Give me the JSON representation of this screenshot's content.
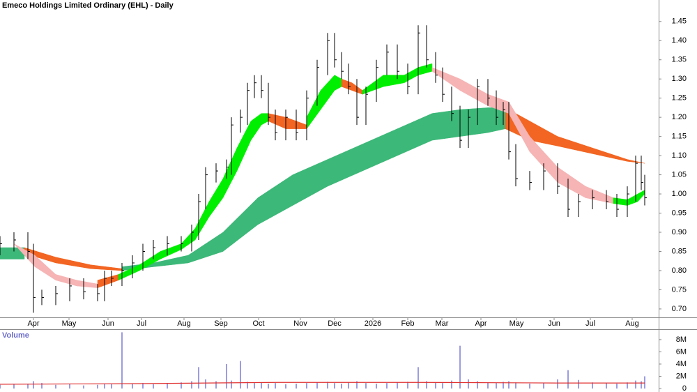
{
  "chart_data": [
    {
      "type": "ohlc",
      "title": "Emeco Holdings Limited Ordinary (EHL) - Daily",
      "color": "#000000",
      "x": [
        0,
        8,
        16,
        19.2,
        24,
        32,
        40,
        48,
        56,
        60,
        64,
        70,
        76,
        82,
        88,
        96,
        104,
        110,
        114,
        118,
        124,
        130,
        132.8,
        138,
        142,
        146,
        150,
        154,
        158,
        164,
        170,
        176,
        182,
        188,
        192,
        196,
        200,
        204.8,
        210,
        216,
        222,
        228,
        234,
        240,
        244.8,
        250,
        254,
        259.2,
        264,
        268.8,
        274,
        280,
        284.8,
        288.8,
        292,
        296,
        304,
        312,
        320,
        326,
        332,
        340,
        348,
        354,
        360,
        364.8,
        368,
        370
      ],
      "high": [
        0.89,
        0.9,
        0.9,
        0.87,
        0.75,
        0.76,
        0.78,
        0.78,
        0.765,
        0.8,
        0.8,
        0.82,
        0.84,
        0.87,
        0.88,
        0.89,
        0.89,
        0.92,
        1.0,
        1.07,
        1.08,
        1.09,
        1.2,
        1.22,
        1.29,
        1.31,
        1.31,
        1.29,
        1.22,
        1.22,
        1.22,
        1.27,
        1.35,
        1.42,
        1.42,
        1.37,
        1.34,
        1.3,
        1.28,
        1.35,
        1.39,
        1.39,
        1.34,
        1.44,
        1.44,
        1.37,
        1.33,
        1.28,
        1.23,
        1.22,
        1.3,
        1.3,
        1.27,
        1.24,
        1.24,
        1.13,
        1.06,
        1.08,
        1.08,
        1.04,
        1.0,
        1.01,
        1.01,
        1.0,
        1.02,
        1.1,
        1.1,
        1.05
      ],
      "low": [
        0.84,
        0.85,
        0.83,
        0.69,
        0.71,
        0.71,
        0.72,
        0.725,
        0.72,
        0.72,
        0.76,
        0.76,
        0.78,
        0.8,
        0.83,
        0.84,
        0.85,
        0.85,
        0.88,
        0.96,
        1.03,
        1.04,
        1.05,
        1.16,
        1.18,
        1.25,
        1.25,
        1.18,
        1.14,
        1.14,
        1.14,
        1.14,
        1.23,
        1.31,
        1.33,
        1.3,
        1.26,
        1.18,
        1.18,
        1.24,
        1.31,
        1.3,
        1.26,
        1.26,
        1.33,
        1.29,
        1.24,
        1.19,
        1.12,
        1.12,
        1.18,
        1.23,
        1.18,
        1.18,
        1.09,
        1.02,
        1.01,
        1.01,
        1.0,
        0.94,
        0.94,
        0.96,
        0.96,
        0.94,
        0.94,
        0.98,
        1.01,
        0.97
      ],
      "close": [
        0.87,
        0.88,
        0.85,
        0.73,
        0.73,
        0.74,
        0.76,
        0.745,
        0.74,
        0.78,
        0.78,
        0.8,
        0.82,
        0.85,
        0.86,
        0.87,
        0.87,
        0.9,
        0.98,
        1.05,
        1.06,
        1.07,
        1.18,
        1.2,
        1.27,
        1.29,
        1.27,
        1.2,
        1.16,
        1.2,
        1.16,
        1.25,
        1.33,
        1.4,
        1.35,
        1.32,
        1.28,
        1.2,
        1.26,
        1.33,
        1.37,
        1.32,
        1.28,
        1.42,
        1.35,
        1.31,
        1.26,
        1.21,
        1.14,
        1.2,
        1.28,
        1.25,
        1.2,
        1.22,
        1.11,
        1.04,
        1.03,
        1.06,
        1.02,
        0.96,
        0.98,
        0.99,
        0.98,
        0.96,
        1.0,
        1.08,
        1.03,
        0.99
      ],
      "bands": [
        {
          "color": "#3cb878",
          "x": [
            0,
            14
          ],
          "upper": [
            0.86,
            0.86
          ],
          "lower": [
            0.83,
            0.83
          ]
        },
        {
          "color": "#f26522",
          "x": [
            14,
            32,
            52,
            70
          ],
          "upper": [
            0.86,
            0.835,
            0.815,
            0.805
          ],
          "lower": [
            0.845,
            0.82,
            0.805,
            0.8
          ]
        },
        {
          "color": "#3cb878",
          "x": [
            70,
            88,
            108,
            128,
            148,
            168,
            188,
            208,
            228,
            248,
            264,
            280,
            290
          ],
          "upper": [
            0.81,
            0.82,
            0.84,
            0.9,
            0.99,
            1.05,
            1.09,
            1.13,
            1.17,
            1.21,
            1.22,
            1.225,
            1.225
          ],
          "lower": [
            0.8,
            0.81,
            0.82,
            0.85,
            0.92,
            0.97,
            1.02,
            1.06,
            1.1,
            1.14,
            1.15,
            1.16,
            1.17
          ]
        },
        {
          "color": "#f26522",
          "x": [
            290,
            304,
            320,
            340,
            360,
            370
          ],
          "upper": [
            1.225,
            1.19,
            1.15,
            1.12,
            1.09,
            1.08
          ],
          "lower": [
            1.17,
            1.14,
            1.125,
            1.105,
            1.085,
            1.08
          ]
        },
        {
          "color": "#f6b4b4",
          "x": [
            8,
            20,
            32,
            44,
            56
          ],
          "upper": [
            0.87,
            0.84,
            0.79,
            0.775,
            0.765
          ],
          "lower": [
            0.87,
            0.81,
            0.775,
            0.76,
            0.755
          ]
        },
        {
          "color": "#f26522",
          "x": [
            56,
            68
          ],
          "upper": [
            0.775,
            0.79
          ],
          "lower": [
            0.755,
            0.775
          ]
        },
        {
          "color": "#00ee00",
          "x": [
            68,
            80,
            92,
            104,
            112,
            120,
            128,
            136,
            144,
            150,
            154
          ],
          "upper": [
            0.79,
            0.815,
            0.85,
            0.87,
            0.91,
            0.98,
            1.04,
            1.12,
            1.19,
            1.21,
            1.21
          ],
          "lower": [
            0.775,
            0.8,
            0.83,
            0.855,
            0.88,
            0.94,
            0.99,
            1.06,
            1.14,
            1.18,
            1.19
          ]
        },
        {
          "color": "#f26522",
          "x": [
            154,
            164,
            176
          ],
          "upper": [
            1.21,
            1.2,
            1.18
          ],
          "lower": [
            1.19,
            1.17,
            1.17
          ]
        },
        {
          "color": "#00ee00",
          "x": [
            176,
            184,
            192,
            196
          ],
          "upper": [
            1.2,
            1.27,
            1.31,
            1.3
          ],
          "lower": [
            1.17,
            1.22,
            1.27,
            1.28
          ]
        },
        {
          "color": "#f26522",
          "x": [
            196,
            202,
            208
          ],
          "upper": [
            1.3,
            1.29,
            1.27
          ],
          "lower": [
            1.28,
            1.27,
            1.26
          ]
        },
        {
          "color": "#00ee00",
          "x": [
            208,
            220,
            232,
            240,
            248
          ],
          "upper": [
            1.27,
            1.31,
            1.31,
            1.33,
            1.34
          ],
          "lower": [
            1.26,
            1.28,
            1.29,
            1.31,
            1.32
          ]
        },
        {
          "color": "#f6b4b4",
          "x": [
            248,
            264,
            280,
            292,
            304,
            320,
            336,
            352
          ],
          "upper": [
            1.33,
            1.3,
            1.26,
            1.24,
            1.15,
            1.07,
            1.02,
            0.99
          ],
          "lower": [
            1.32,
            1.27,
            1.23,
            1.21,
            1.11,
            1.03,
            0.99,
            0.975
          ]
        },
        {
          "color": "#00ee00",
          "x": [
            352,
            360,
            366,
            370
          ],
          "upper": [
            0.99,
            0.985,
            1.0,
            1.01
          ],
          "lower": [
            0.975,
            0.97,
            0.98,
            1.0
          ]
        }
      ],
      "xlim": [
        0,
        378
      ],
      "ylim": [
        0.678,
        1.506
      ],
      "xticks": [
        {
          "value": 19.2,
          "label": "Apr"
        },
        {
          "value": 39.6,
          "label": "May"
        },
        {
          "value": 62,
          "label": "Jun"
        },
        {
          "value": 81.2,
          "label": "Jul"
        },
        {
          "value": 105.6,
          "label": "Aug"
        },
        {
          "value": 126.8,
          "label": "Sep"
        },
        {
          "value": 148.4,
          "label": "Oct"
        },
        {
          "value": 172.4,
          "label": "Nov"
        },
        {
          "value": 192,
          "label": "Dec"
        },
        {
          "value": 214,
          "label": "2026"
        },
        {
          "value": 234,
          "label": "Feb"
        },
        {
          "value": 253.6,
          "label": "Mar"
        },
        {
          "value": 276,
          "label": "Apr"
        },
        {
          "value": 296.4,
          "label": "May"
        },
        {
          "value": 318,
          "label": "Jun"
        },
        {
          "value": 338.8,
          "label": "Jul"
        },
        {
          "value": 362.8,
          "label": "Aug"
        }
      ],
      "yticks": [
        {
          "value": 0.7,
          "label": "0.70"
        },
        0.75,
        {
          "value": 0.8,
          "label": "0.80"
        },
        0.85,
        {
          "value": 0.9,
          "label": "0.90"
        },
        0.95,
        {
          "value": 1.0,
          "label": "1.00"
        },
        1.05,
        {
          "value": 1.1,
          "label": "1.10"
        },
        1.15,
        {
          "value": 1.2,
          "label": "1.20"
        },
        1.25,
        {
          "value": 1.3,
          "label": "1.30"
        },
        1.35,
        {
          "value": 1.4,
          "label": "1.40"
        },
        1.45
      ]
    },
    {
      "type": "bar",
      "title": "Volume",
      "color": "#7b7bd6",
      "x": [
        0,
        8,
        16,
        19.2,
        24,
        32,
        40,
        48,
        56,
        60,
        64,
        70,
        76,
        82,
        88,
        96,
        104,
        110,
        114,
        118,
        124,
        130,
        132.8,
        138,
        142,
        146,
        150,
        154,
        158,
        164,
        170,
        176,
        182,
        188,
        192,
        196,
        200,
        204.8,
        210,
        216,
        222,
        228,
        234,
        240,
        244.8,
        250,
        254,
        259.2,
        264,
        268.8,
        274,
        280,
        284.8,
        288.8,
        292,
        296,
        304,
        312,
        320,
        326,
        332,
        340,
        348,
        354,
        360,
        364.8,
        368,
        370
      ],
      "values": [
        0.6,
        0.7,
        0.8,
        1.2,
        0.9,
        0.6,
        0.7,
        0.5,
        0.6,
        0.8,
        0.7,
        9.2,
        0.8,
        0.9,
        0.7,
        0.8,
        1.0,
        1.2,
        3.5,
        1.5,
        1.2,
        4.0,
        1.3,
        4.5,
        1.1,
        0.9,
        1.0,
        0.8,
        0.9,
        0.7,
        0.8,
        0.9,
        1.0,
        1.1,
        0.9,
        0.8,
        1.0,
        1.2,
        0.9,
        0.8,
        0.9,
        1.0,
        1.1,
        3.5,
        1.2,
        1.0,
        0.9,
        1.3,
        7.0,
        1.5,
        1.2,
        1.0,
        0.9,
        1.1,
        1.2,
        1.0,
        0.8,
        0.9,
        1.5,
        3.0,
        1.4,
        1.0,
        0.9,
        0.8,
        1.0,
        1.3,
        1.2,
        2.0
      ],
      "average": {
        "color": "#e03030",
        "x": [
          0,
          80,
          160,
          240,
          320,
          370
        ],
        "values": [
          0.7,
          0.8,
          1.0,
          1.0,
          0.9,
          0.9
        ]
      },
      "xlim": [
        0,
        378
      ],
      "ylim": [
        0,
        9.7
      ],
      "yticks": [
        0,
        {
          "value": 2,
          "label": "2M"
        },
        {
          "value": 4,
          "label": "4M"
        },
        {
          "value": 6,
          "label": "6M"
        },
        {
          "value": 8,
          "label": "8M"
        }
      ]
    }
  ]
}
